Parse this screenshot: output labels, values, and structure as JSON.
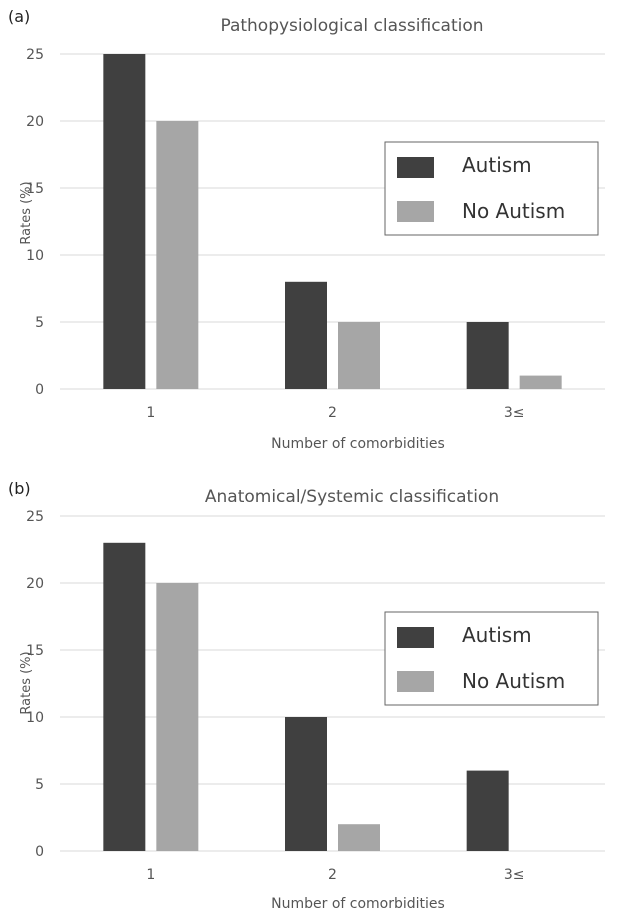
{
  "chart_data": [
    {
      "type": "bar",
      "panel_label": "(a)",
      "title": "Pathopysiological classification",
      "xlabel": "Number of comorbidities",
      "ylabel": "Rates (%)",
      "categories": [
        "1",
        "2",
        "3≤"
      ],
      "series": [
        {
          "name": "Autism",
          "values": [
            25,
            8,
            5
          ],
          "color": "#404040"
        },
        {
          "name": "No Autism",
          "values": [
            20,
            5,
            1
          ],
          "color": "#a6a6a6"
        }
      ],
      "ylim": [
        0,
        25
      ],
      "yticks": [
        0,
        5,
        10,
        15,
        20,
        25
      ],
      "grid": true,
      "legend_position": "right"
    },
    {
      "type": "bar",
      "panel_label": "(b)",
      "title": "Anatomical/Systemic classification",
      "xlabel": "Number of comorbidities",
      "ylabel": "Rates (%)",
      "categories": [
        "1",
        "2",
        "3≤"
      ],
      "series": [
        {
          "name": "Autism",
          "values": [
            23,
            10,
            6
          ],
          "color": "#404040"
        },
        {
          "name": "No Autism",
          "values": [
            20,
            2,
            0
          ],
          "color": "#a6a6a6"
        }
      ],
      "ylim": [
        0,
        25
      ],
      "yticks": [
        0,
        5,
        10,
        15,
        20,
        25
      ],
      "grid": true,
      "legend_position": "right"
    }
  ]
}
